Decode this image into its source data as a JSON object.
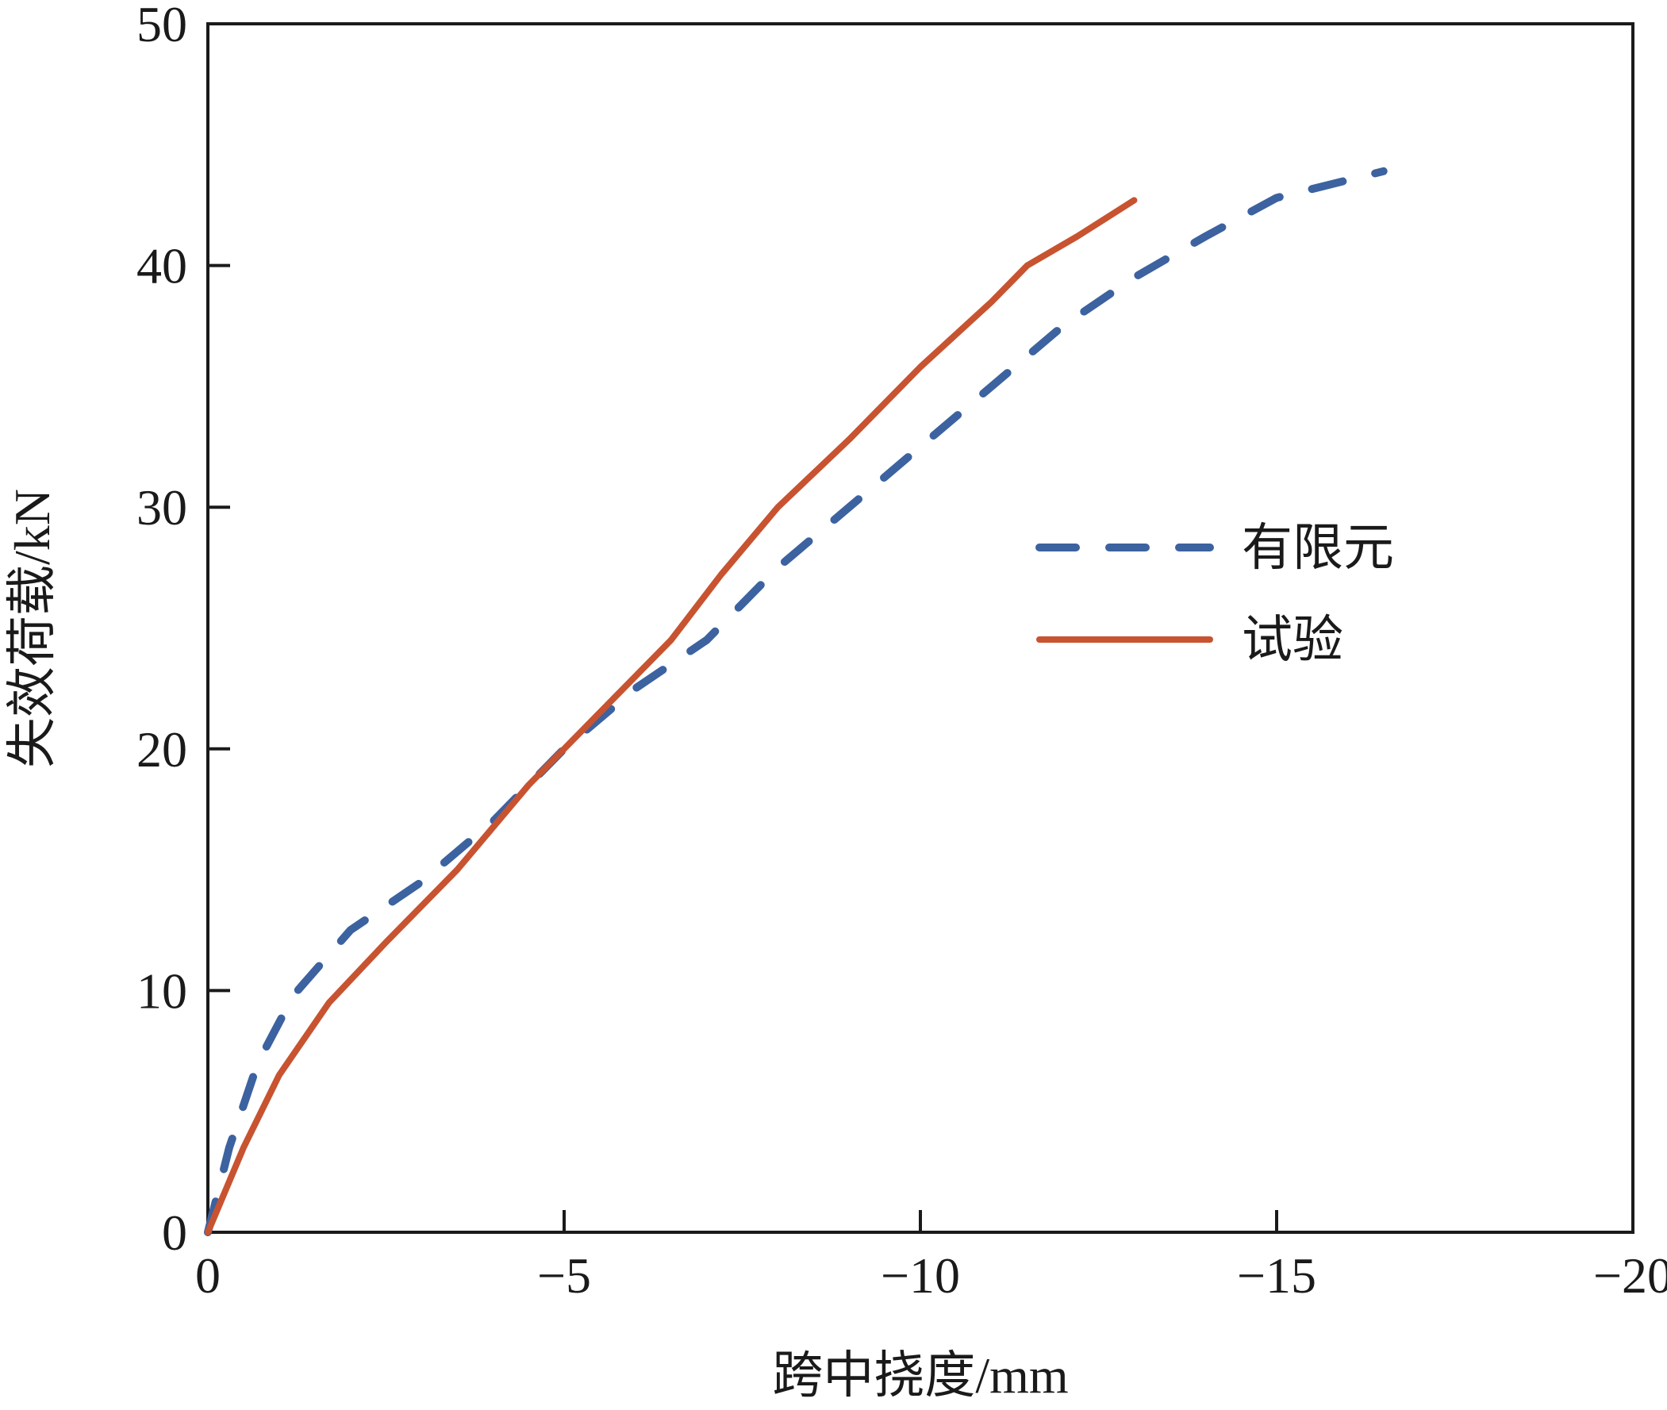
{
  "chart_data": {
    "type": "line",
    "xlabel": "跨中挠度/mm",
    "ylabel": "失效荷载/kN",
    "xlim": [
      0,
      -20
    ],
    "ylim": [
      0,
      50
    ],
    "x_ticks": [
      0,
      -5,
      -10,
      -15,
      -20
    ],
    "x_tick_labels": [
      "0",
      "−5",
      "−10",
      "−15",
      "−20"
    ],
    "y_ticks": [
      0,
      10,
      20,
      30,
      40,
      50
    ],
    "y_tick_labels": [
      "0",
      "10",
      "20",
      "30",
      "40",
      "50"
    ],
    "grid": false,
    "legend_position": "right",
    "series": [
      {
        "name": "有限元",
        "style": "dashed",
        "color": "#3c62a0",
        "points": [
          [
            0,
            0
          ],
          [
            -0.3,
            3.5
          ],
          [
            -0.7,
            7.0
          ],
          [
            -1.2,
            9.8
          ],
          [
            -2.0,
            12.5
          ],
          [
            -3.0,
            14.5
          ],
          [
            -4.0,
            17.0
          ],
          [
            -5.0,
            20.0
          ],
          [
            -6.0,
            22.5
          ],
          [
            -7.0,
            24.5
          ],
          [
            -8.0,
            27.5
          ],
          [
            -9.0,
            30.0
          ],
          [
            -10.0,
            32.5
          ],
          [
            -11.0,
            35.0
          ],
          [
            -12.0,
            37.5
          ],
          [
            -13.0,
            39.5
          ],
          [
            -14.0,
            41.2
          ],
          [
            -15.0,
            42.8
          ],
          [
            -16.5,
            43.9
          ]
        ]
      },
      {
        "name": "试验",
        "style": "solid",
        "color": "#c85330",
        "points": [
          [
            0,
            0
          ],
          [
            -0.5,
            3.5
          ],
          [
            -1.0,
            6.5
          ],
          [
            -1.7,
            9.5
          ],
          [
            -2.5,
            12.0
          ],
          [
            -3.5,
            15.0
          ],
          [
            -4.5,
            18.5
          ],
          [
            -5.5,
            21.5
          ],
          [
            -6.5,
            24.5
          ],
          [
            -7.2,
            27.2
          ],
          [
            -8.0,
            30.0
          ],
          [
            -9.0,
            32.8
          ],
          [
            -10.0,
            35.8
          ],
          [
            -11.0,
            38.5
          ],
          [
            -11.5,
            40.0
          ],
          [
            -12.2,
            41.2
          ],
          [
            -13.0,
            42.7
          ]
        ]
      }
    ]
  }
}
